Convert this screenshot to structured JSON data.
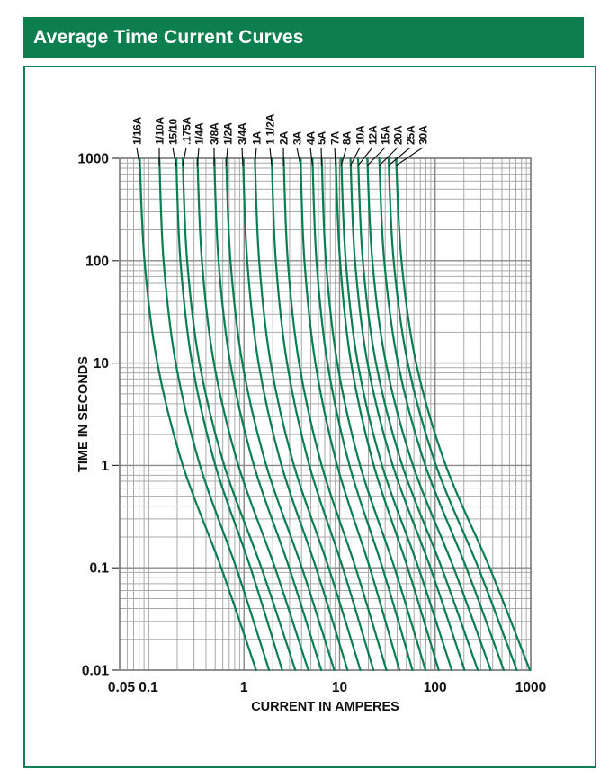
{
  "banner": {
    "title": "Average Time Current Curves"
  },
  "chart_data": {
    "type": "line",
    "title": "Average Time Current Curves",
    "xlabel": "CURRENT IN AMPERES",
    "ylabel": "TIME IN SECONDS",
    "x_scale": "log",
    "y_scale": "log",
    "xlim": [
      0.05,
      1000
    ],
    "ylim": [
      0.01,
      1000
    ],
    "x_ticks": [
      "0.05",
      "0.1",
      "1",
      "10",
      "100",
      "1000"
    ],
    "x_tick_values": [
      0.05,
      0.1,
      1,
      10,
      100,
      1000
    ],
    "y_ticks": [
      "1000",
      "100",
      "10",
      "1",
      "0.1",
      "0.01"
    ],
    "y_tick_values": [
      1000,
      100,
      10,
      1,
      0.1,
      0.01
    ],
    "grid": "log major and minor gridlines, gray, both axes",
    "legend_position": "rotated labels above plot with leader lines",
    "curve_color": "#0a7e50",
    "grid_minor_color": "#a9a9a9",
    "grid_major_color": "#8a8a8a",
    "frame_color": "#777777",
    "text_color": "#111111",
    "anchor_times": [
      1000,
      100,
      10,
      1,
      0.1,
      0.01
    ],
    "series": [
      {
        "label": "1/16A",
        "rating": 0.0625,
        "currents": [
          0.081,
          0.091,
          0.124,
          0.229,
          0.578,
          1.34
        ]
      },
      {
        "label": "1/10A",
        "rating": 0.1,
        "currents": [
          0.13,
          0.144,
          0.193,
          0.346,
          0.829,
          1.83
        ]
      },
      {
        "label": "15/10",
        "rating": 0.15,
        "currents": [
          0.195,
          0.216,
          0.286,
          0.502,
          1.17,
          2.51
        ]
      },
      {
        "label": ".175A",
        "rating": 0.175,
        "currents": [
          0.228,
          0.254,
          0.342,
          0.621,
          1.52,
          3.44
        ]
      },
      {
        "label": "1/4A",
        "rating": 0.25,
        "currents": [
          0.325,
          0.362,
          0.485,
          0.874,
          2.11,
          4.7
        ]
      },
      {
        "label": "3/8A",
        "rating": 0.375,
        "currents": [
          0.488,
          0.541,
          0.718,
          1.27,
          2.97,
          6.44
        ]
      },
      {
        "label": "1/2A",
        "rating": 0.5,
        "currents": [
          0.65,
          0.722,
          0.961,
          1.71,
          4.03,
          8.81
        ]
      },
      {
        "label": "3/4A",
        "rating": 0.75,
        "currents": [
          0.975,
          1.08,
          1.42,
          2.47,
          5.67,
          12.1
        ]
      },
      {
        "label": "1A",
        "rating": 1,
        "currents": [
          1.3,
          1.44,
          1.9,
          3.33,
          7.7,
          16.5
        ]
      },
      {
        "label": "1 1/2A",
        "rating": 1.5,
        "currents": [
          1.95,
          2.15,
          2.82,
          4.83,
          10.8,
          22.6
        ]
      },
      {
        "label": "2A",
        "rating": 2,
        "currents": [
          2.6,
          2.87,
          3.77,
          6.5,
          14.7,
          30.9
        ]
      },
      {
        "label": "3A",
        "rating": 3,
        "currents": [
          3.9,
          4.29,
          5.58,
          9.43,
          20.7,
          42.3
        ]
      },
      {
        "label": "4A",
        "rating": 4,
        "currents": [
          5.2,
          5.73,
          7.47,
          12.7,
          28.1,
          57.9
        ]
      },
      {
        "label": "5A",
        "rating": 5,
        "currents": [
          6.5,
          7.18,
          9.46,
          16.4,
          37.5,
          79.3
        ]
      },
      {
        "label": "7A",
        "rating": 7,
        "currents": [
          9.1,
          10.1,
          13.2,
          22.8,
          51.6,
          109
        ]
      },
      {
        "label": "8A",
        "rating": 8,
        "currents": [
          10.4,
          11.6,
          15.5,
          27.8,
          66.9,
          149
        ]
      },
      {
        "label": "10A",
        "rating": 10,
        "currents": [
          13.0,
          14.5,
          19.6,
          36.0,
          89.2,
          203
        ]
      },
      {
        "label": "12A",
        "rating": 12,
        "currents": [
          15.6,
          17.5,
          24.0,
          45.3,
          117,
          279
        ]
      },
      {
        "label": "15A",
        "rating": 15,
        "currents": [
          19.5,
          22.0,
          30.5,
          58.6,
          156,
          381
        ]
      },
      {
        "label": "20A",
        "rating": 20,
        "currents": [
          26.0,
          29.3,
          40.8,
          78.9,
          212,
          522
        ]
      },
      {
        "label": "25A",
        "rating": 25,
        "currents": [
          32.5,
          36.8,
          51.7,
          102,
          283,
          714
        ]
      },
      {
        "label": "30A",
        "rating": 30,
        "currents": [
          39.0,
          44.4,
          63.2,
          129,
          372,
          978
        ]
      }
    ]
  }
}
